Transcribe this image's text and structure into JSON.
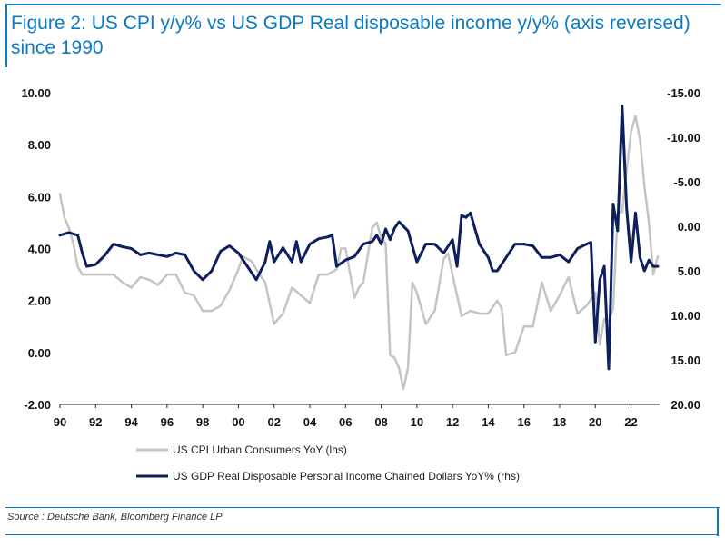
{
  "title": "Figure 2: US CPI y/y% vs US GDP Real disposable income y/y% (axis reversed) since 1990",
  "source": "Source : Deutsche Bank, Bloomberg Finance LP",
  "colors": {
    "accent": "#0a7bc2",
    "cpi": "#c4c4c4",
    "income": "#0d1f5c"
  },
  "chart_data": {
    "type": "line",
    "x_ticks": [
      "90",
      "92",
      "94",
      "96",
      "98",
      "00",
      "02",
      "04",
      "06",
      "08",
      "10",
      "12",
      "14",
      "16",
      "18",
      "20",
      "22"
    ],
    "xlim": [
      1990,
      2023.6
    ],
    "left_axis": {
      "ylim": [
        -2,
        10
      ],
      "ticks": [
        "-2.00",
        "0.00",
        "2.00",
        "4.00",
        "6.00",
        "8.00",
        "10.00"
      ]
    },
    "right_axis": {
      "ylim": [
        20,
        -15
      ],
      "reversed": true,
      "ticks": [
        "-15.00",
        "-10.00",
        "-5.00",
        "0.00",
        "5.00",
        "10.00",
        "15.00",
        "20.00"
      ]
    },
    "legend_placement": "bottom-left",
    "series": [
      {
        "name": "US CPI Urban Consumers YoY (lhs)",
        "axis": "left",
        "x": [
          1990.0,
          1990.25,
          1990.5,
          1990.75,
          1991.0,
          1991.25,
          1991.5,
          1991.75,
          1992.0,
          1992.5,
          1993.0,
          1993.5,
          1994.0,
          1994.5,
          1995.0,
          1995.5,
          1996.0,
          1996.5,
          1997.0,
          1997.5,
          1998.0,
          1998.5,
          1999.0,
          1999.5,
          2000.0,
          2000.25,
          2000.5,
          2000.75,
          2001.0,
          2001.5,
          2002.0,
          2002.5,
          2003.0,
          2003.5,
          2004.0,
          2004.5,
          2005.0,
          2005.5,
          2005.75,
          2006.0,
          2006.5,
          2006.75,
          2007.0,
          2007.5,
          2007.75,
          2008.0,
          2008.25,
          2008.5,
          2008.75,
          2009.0,
          2009.25,
          2009.5,
          2009.75,
          2010.0,
          2010.5,
          2011.0,
          2011.5,
          2011.75,
          2012.0,
          2012.5,
          2013.0,
          2013.5,
          2014.0,
          2014.5,
          2014.75,
          2015.0,
          2015.5,
          2016.0,
          2016.5,
          2017.0,
          2017.5,
          2018.0,
          2018.5,
          2019.0,
          2019.5,
          2020.0,
          2020.25,
          2020.5,
          2020.75,
          2021.0,
          2021.25,
          2021.5,
          2021.75,
          2022.0,
          2022.25,
          2022.5,
          2022.75,
          2023.0,
          2023.25,
          2023.5
        ],
        "values": [
          6.1,
          5.2,
          4.8,
          4.2,
          3.3,
          3.0,
          3.0,
          3.0,
          3.0,
          3.0,
          3.0,
          2.7,
          2.5,
          2.9,
          2.8,
          2.6,
          3.0,
          3.0,
          2.3,
          2.2,
          1.6,
          1.6,
          1.8,
          2.4,
          3.2,
          3.7,
          3.6,
          3.5,
          3.2,
          2.7,
          1.1,
          1.5,
          2.5,
          2.2,
          1.9,
          3.0,
          3.0,
          3.2,
          4.0,
          4.0,
          2.1,
          2.5,
          2.7,
          4.8,
          5.0,
          4.4,
          4.2,
          -0.1,
          -0.2,
          -0.6,
          -1.4,
          -0.6,
          2.7,
          2.3,
          1.1,
          1.6,
          3.6,
          3.8,
          3.0,
          1.4,
          1.6,
          1.5,
          1.5,
          2.0,
          1.7,
          -0.1,
          0.0,
          1.0,
          1.0,
          2.7,
          1.6,
          2.2,
          2.9,
          1.5,
          1.8,
          2.3,
          0.3,
          1.3,
          1.2,
          1.7,
          5.4,
          5.4,
          7.0,
          8.5,
          9.1,
          8.2,
          6.4,
          5.0,
          3.0,
          3.7
        ],
        "color": "#c4c4c4"
      },
      {
        "name": "US GDP Real Disposable Personal Income Chained Dollars YoY% (rhs)",
        "axis": "right",
        "x": [
          1990.0,
          1990.5,
          1991.0,
          1991.25,
          1991.5,
          1992.0,
          1992.5,
          1993.0,
          1993.5,
          1994.0,
          1994.5,
          1995.0,
          1995.5,
          1996.0,
          1996.5,
          1997.0,
          1997.5,
          1998.0,
          1998.5,
          1999.0,
          1999.5,
          2000.0,
          2000.5,
          2001.0,
          2001.5,
          2001.75,
          2002.0,
          2002.5,
          2003.0,
          2003.25,
          2003.5,
          2004.0,
          2004.5,
          2005.0,
          2005.25,
          2005.5,
          2006.0,
          2006.5,
          2007.0,
          2007.5,
          2007.75,
          2008.0,
          2008.25,
          2008.5,
          2008.75,
          2009.0,
          2009.5,
          2010.0,
          2010.5,
          2011.0,
          2011.5,
          2012.0,
          2012.25,
          2012.5,
          2012.75,
          2013.0,
          2013.5,
          2014.0,
          2014.25,
          2014.5,
          2015.0,
          2015.5,
          2016.0,
          2016.5,
          2017.0,
          2017.5,
          2018.0,
          2018.5,
          2019.0,
          2019.5,
          2019.75,
          2020.0,
          2020.25,
          2020.5,
          2020.75,
          2021.0,
          2021.25,
          2021.5,
          2021.75,
          2022.0,
          2022.25,
          2022.5,
          2022.75,
          2023.0,
          2023.25,
          2023.5
        ],
        "values": [
          1.0,
          0.7,
          1.0,
          3.0,
          4.5,
          4.3,
          3.3,
          2.0,
          2.3,
          2.5,
          3.2,
          3.0,
          3.2,
          3.4,
          3.0,
          3.2,
          5.0,
          6.0,
          5.0,
          2.8,
          2.2,
          3.0,
          4.5,
          6.0,
          4.0,
          1.7,
          4.0,
          2.4,
          4.0,
          1.7,
          4.0,
          2.0,
          1.4,
          1.2,
          1.0,
          4.5,
          3.8,
          3.4,
          2.0,
          1.7,
          1.0,
          2.0,
          0.3,
          1.5,
          0.2,
          -0.5,
          0.5,
          4.0,
          2.0,
          2.0,
          3.0,
          1.5,
          4.5,
          -1.2,
          -1.0,
          -1.5,
          2.0,
          3.5,
          5.0,
          5.0,
          3.5,
          2.0,
          2.0,
          2.2,
          3.5,
          3.5,
          3.2,
          4.0,
          2.5,
          2.0,
          1.8,
          13.0,
          6.0,
          4.5,
          16.0,
          -2.5,
          0.5,
          -13.5,
          -2.0,
          4.0,
          -1.5,
          3.5,
          5.0,
          3.8,
          4.5,
          4.5
        ],
        "color": "#0d1f5c"
      }
    ]
  }
}
